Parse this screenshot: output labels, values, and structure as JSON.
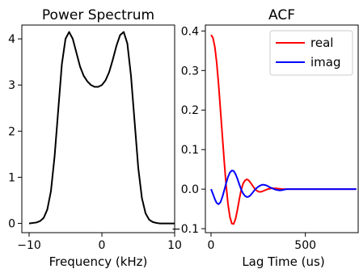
{
  "chart_data": [
    {
      "type": "line",
      "title": "Power Spectrum",
      "xlabel": "Frequency (kHz)",
      "ylabel": "",
      "xlim": [
        -11,
        10
      ],
      "ylim": [
        -0.2,
        4.3
      ],
      "xticks": [
        -10,
        0,
        10
      ],
      "xtick_labels": [
        "−10",
        "0",
        "10"
      ],
      "yticks": [
        0,
        1,
        2,
        3,
        4
      ],
      "ytick_labels": [
        "0",
        "1",
        "2",
        "3",
        "4"
      ],
      "grid": false,
      "series": [
        {
          "color": "#000000",
          "x": [
            -10,
            -9,
            -8.5,
            -8,
            -7.5,
            -7,
            -6.5,
            -6,
            -5.5,
            -5,
            -4.5,
            -4,
            -3.5,
            -3,
            -2.5,
            -2,
            -1.5,
            -1,
            -0.5,
            0,
            0.5,
            1,
            1.5,
            2,
            2.5,
            3,
            3.5,
            4,
            4.5,
            5,
            5.5,
            6,
            6.5,
            7,
            7.5,
            8,
            9,
            10
          ],
          "y": [
            0.0,
            0.02,
            0.05,
            0.12,
            0.3,
            0.7,
            1.45,
            2.45,
            3.45,
            4.0,
            4.15,
            4.0,
            3.7,
            3.4,
            3.2,
            3.08,
            3.0,
            2.96,
            2.96,
            3.0,
            3.1,
            3.28,
            3.55,
            3.85,
            4.08,
            4.15,
            3.9,
            3.2,
            2.2,
            1.2,
            0.55,
            0.22,
            0.08,
            0.03,
            0.01,
            0.0,
            0.0,
            0.0
          ]
        }
      ]
    },
    {
      "type": "line",
      "title": "ACF",
      "xlabel": "Lag Time (us)",
      "ylabel": "",
      "xlim": [
        -30,
        780
      ],
      "ylim": [
        -0.11,
        0.415
      ],
      "xticks": [
        0,
        500
      ],
      "xtick_labels": [
        "0",
        "500"
      ],
      "yticks": [
        -0.1,
        0.0,
        0.1,
        0.2,
        0.3,
        0.4
      ],
      "ytick_labels": [
        "−0.1",
        "0.0",
        "0.1",
        "0.2",
        "0.3",
        "0.4"
      ],
      "grid": false,
      "legend_position": "top-right",
      "series": [
        {
          "name": "real",
          "color": "#ff0000",
          "x": [
            0,
            10,
            20,
            30,
            40,
            50,
            60,
            70,
            80,
            90,
            100,
            110,
            120,
            130,
            140,
            150,
            160,
            170,
            180,
            190,
            200,
            210,
            220,
            230,
            240,
            250,
            260,
            270,
            280,
            290,
            300,
            320,
            340,
            360,
            380,
            400,
            450,
            500,
            600,
            700,
            770
          ],
          "y": [
            0.39,
            0.383,
            0.36,
            0.32,
            0.265,
            0.2,
            0.135,
            0.07,
            0.01,
            -0.038,
            -0.07,
            -0.087,
            -0.088,
            -0.075,
            -0.052,
            -0.025,
            -0.002,
            0.014,
            0.022,
            0.025,
            0.022,
            0.016,
            0.009,
            0.002,
            -0.003,
            -0.006,
            -0.007,
            -0.006,
            -0.004,
            -0.002,
            0.0,
            0.002,
            0.002,
            0.001,
            0.0,
            0.0,
            0.0,
            0.0,
            0.0,
            0.0,
            0.0
          ]
        },
        {
          "name": "imag",
          "color": "#0000ff",
          "x": [
            0,
            10,
            20,
            30,
            40,
            50,
            60,
            70,
            80,
            90,
            100,
            110,
            120,
            130,
            140,
            150,
            160,
            170,
            180,
            190,
            200,
            210,
            220,
            230,
            240,
            250,
            260,
            270,
            280,
            290,
            300,
            310,
            320,
            330,
            340,
            350,
            360,
            370,
            380,
            390,
            400,
            420,
            440,
            460,
            500,
            550,
            600,
            700,
            770
          ],
          "y": [
            0.0,
            -0.012,
            -0.025,
            -0.035,
            -0.038,
            -0.033,
            -0.02,
            -0.003,
            0.015,
            0.031,
            0.042,
            0.047,
            0.046,
            0.038,
            0.026,
            0.012,
            -0.001,
            -0.011,
            -0.017,
            -0.02,
            -0.019,
            -0.015,
            -0.009,
            -0.003,
            0.002,
            0.006,
            0.009,
            0.011,
            0.011,
            0.01,
            0.008,
            0.005,
            0.003,
            0.001,
            -0.001,
            -0.002,
            -0.003,
            -0.003,
            -0.002,
            -0.001,
            0.0,
            0.0,
            0.0,
            0.0,
            0.0,
            0.0,
            0.0,
            0.0,
            0.0
          ]
        }
      ]
    }
  ]
}
